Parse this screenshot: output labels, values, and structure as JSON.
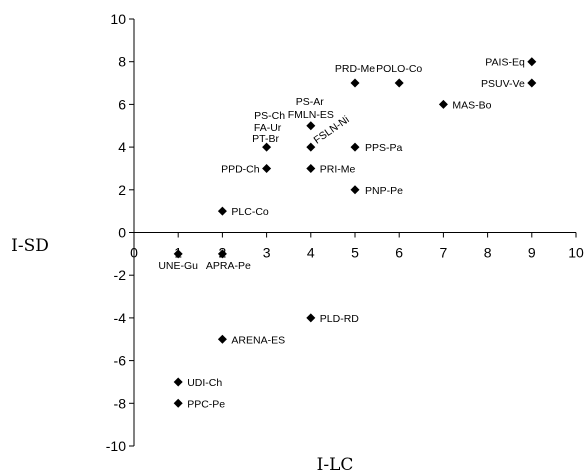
{
  "chart_data": {
    "type": "scatter",
    "xlabel": "I-LC",
    "ylabel": "I-SD",
    "xlim": [
      0,
      10
    ],
    "ylim": [
      -10,
      10
    ],
    "x_ticks": [
      "0",
      "1",
      "2",
      "3",
      "4",
      "5",
      "6",
      "7",
      "8",
      "9",
      "10"
    ],
    "y_ticks": [
      "10",
      "8",
      "6",
      "4",
      "2",
      "0",
      "-2",
      "-4",
      "-6",
      "-8",
      "-10"
    ],
    "grid": false,
    "marker": "diamond",
    "points": [
      {
        "label": "UNE-Gu",
        "x": 1,
        "y": -1
      },
      {
        "label": "APRA-Pe",
        "x": 2,
        "y": -1
      },
      {
        "label": "PLC-Co",
        "x": 2,
        "y": 1
      },
      {
        "label": "PPD-Ch",
        "x": 3,
        "y": 3
      },
      {
        "label": "PS-Ch",
        "x": 3,
        "y": 4
      },
      {
        "label": "FA-Ur",
        "x": 3,
        "y": 4
      },
      {
        "label": "PT-Br",
        "x": 3,
        "y": 4
      },
      {
        "label": "PS-Ar",
        "x": 4,
        "y": 5
      },
      {
        "label": "FMLN-ES",
        "x": 4,
        "y": 5
      },
      {
        "label": "FSLN-Ni",
        "x": 4,
        "y": 4
      },
      {
        "label": "PRI-Me",
        "x": 4,
        "y": 3
      },
      {
        "label": "PLD-RD",
        "x": 4,
        "y": -4
      },
      {
        "label": "ARENA-ES",
        "x": 2,
        "y": -5
      },
      {
        "label": "UDI-Ch",
        "x": 1,
        "y": -7
      },
      {
        "label": "PPC-Pe",
        "x": 1,
        "y": -8
      },
      {
        "label": "PRD-Me",
        "x": 5,
        "y": 7
      },
      {
        "label": "POLO-Co",
        "x": 6,
        "y": 7
      },
      {
        "label": "PPS-Pa",
        "x": 5,
        "y": 4
      },
      {
        "label": "PNP-Pe",
        "x": 5,
        "y": 2
      },
      {
        "label": "MAS-Bo",
        "x": 7,
        "y": 6
      },
      {
        "label": "PAIS-Eq",
        "x": 9,
        "y": 8
      },
      {
        "label": "PSUV-Ve",
        "x": 9,
        "y": 7
      }
    ]
  }
}
